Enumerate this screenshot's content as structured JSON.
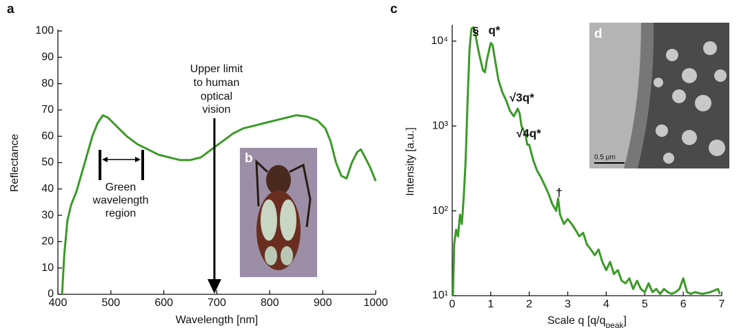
{
  "chart_data": [
    {
      "type": "line",
      "panel": "a",
      "xlabel": "Wavelength [nm]",
      "ylabel": "Reflectance",
      "xlim": [
        400,
        1000
      ],
      "ylim": [
        0,
        100
      ],
      "xticks": [
        400,
        500,
        600,
        700,
        800,
        900,
        1000
      ],
      "yticks": [
        0,
        10,
        20,
        30,
        40,
        50,
        60,
        70,
        80,
        90,
        100
      ],
      "log_y": false,
      "annotations": [
        [
          "Upper limit",
          "to human",
          "optical",
          "vision"
        ],
        [
          "Green",
          "wavelength",
          "region"
        ]
      ],
      "series": [
        {
          "color": "#3a9a26",
          "x": [
            408,
            412,
            418,
            425,
            435,
            445,
            455,
            465,
            475,
            485,
            495,
            510,
            530,
            550,
            570,
            590,
            610,
            630,
            650,
            670,
            690,
            710,
            730,
            750,
            770,
            790,
            810,
            830,
            850,
            870,
            890,
            905,
            915,
            925,
            935,
            945,
            955,
            965,
            972,
            980,
            990,
            1000
          ],
          "values": [
            0,
            15,
            28,
            34,
            39,
            46,
            53,
            60,
            65,
            68,
            67,
            64,
            60,
            57,
            55,
            53,
            52,
            51,
            51,
            52,
            55,
            58,
            61,
            63,
            64,
            65,
            66,
            67,
            68,
            67.5,
            66,
            63,
            58,
            50,
            45,
            44,
            50,
            54,
            55,
            52,
            48,
            43
          ]
        }
      ]
    },
    {
      "type": "line",
      "panel": "c",
      "xlabel": "Scale q [q/q",
      "xlabel_sub": "peak",
      "xlabel_end": "]",
      "ylabel": "Intensity [a.u.]",
      "xlim": [
        0,
        7
      ],
      "ylim": [
        10,
        15000
      ],
      "xticks": [
        0,
        1,
        2,
        3,
        4,
        5,
        6,
        7
      ],
      "yticks": [
        {
          "value": 10,
          "label": "10¹"
        },
        {
          "value": 100,
          "label": "10²"
        },
        {
          "value": 1000,
          "label": "10³"
        },
        {
          "value": 10000,
          "label": "10⁴"
        }
      ],
      "log_y": true,
      "annotations": [
        "§",
        "q*",
        "√3q*",
        "√4q*",
        "†"
      ],
      "series": [
        {
          "color": "#3a9a26",
          "x": [
            0.02,
            0.05,
            0.1,
            0.15,
            0.2,
            0.25,
            0.3,
            0.35,
            0.4,
            0.45,
            0.5,
            0.55,
            0.6,
            0.7,
            0.8,
            0.85,
            0.9,
            1.0,
            1.05,
            1.1,
            1.2,
            1.3,
            1.4,
            1.5,
            1.6,
            1.7,
            1.75,
            1.8,
            1.9,
            1.95,
            2.0,
            2.1,
            2.2,
            2.3,
            2.4,
            2.5,
            2.6,
            2.7,
            2.75,
            2.8,
            2.9,
            3.0,
            3.1,
            3.2,
            3.3,
            3.4,
            3.5,
            3.6,
            3.7,
            3.8,
            3.9,
            4.0,
            4.1,
            4.2,
            4.3,
            4.4,
            4.5,
            4.6,
            4.7,
            4.8,
            4.9,
            5.0,
            5.1,
            5.2,
            5.3,
            5.4,
            5.5,
            5.6,
            5.7,
            5.8,
            5.9,
            6.0,
            6.1,
            6.2,
            6.3,
            6.5,
            6.7,
            6.9,
            6.95
          ],
          "values": [
            10,
            40,
            60,
            50,
            90,
            70,
            150,
            400,
            2000,
            8000,
            14000,
            14500,
            12000,
            7000,
            4500,
            4300,
            6000,
            9500,
            9000,
            6500,
            3500,
            2500,
            2000,
            1500,
            1300,
            1600,
            1400,
            1000,
            800,
            600,
            600,
            400,
            300,
            250,
            200,
            160,
            120,
            100,
            140,
            90,
            70,
            80,
            70,
            60,
            50,
            55,
            40,
            35,
            30,
            35,
            25,
            20,
            25,
            18,
            20,
            15,
            14,
            16,
            12,
            15,
            12,
            11,
            14,
            11,
            12,
            10.5,
            12,
            11,
            10.5,
            11,
            12,
            16,
            11,
            10.5,
            11,
            10.5,
            11,
            12,
            10.5
          ]
        }
      ]
    }
  ],
  "images": [
    {
      "label": "b"
    },
    {
      "label": "d",
      "scale_bar": "0.5 µm"
    }
  ]
}
